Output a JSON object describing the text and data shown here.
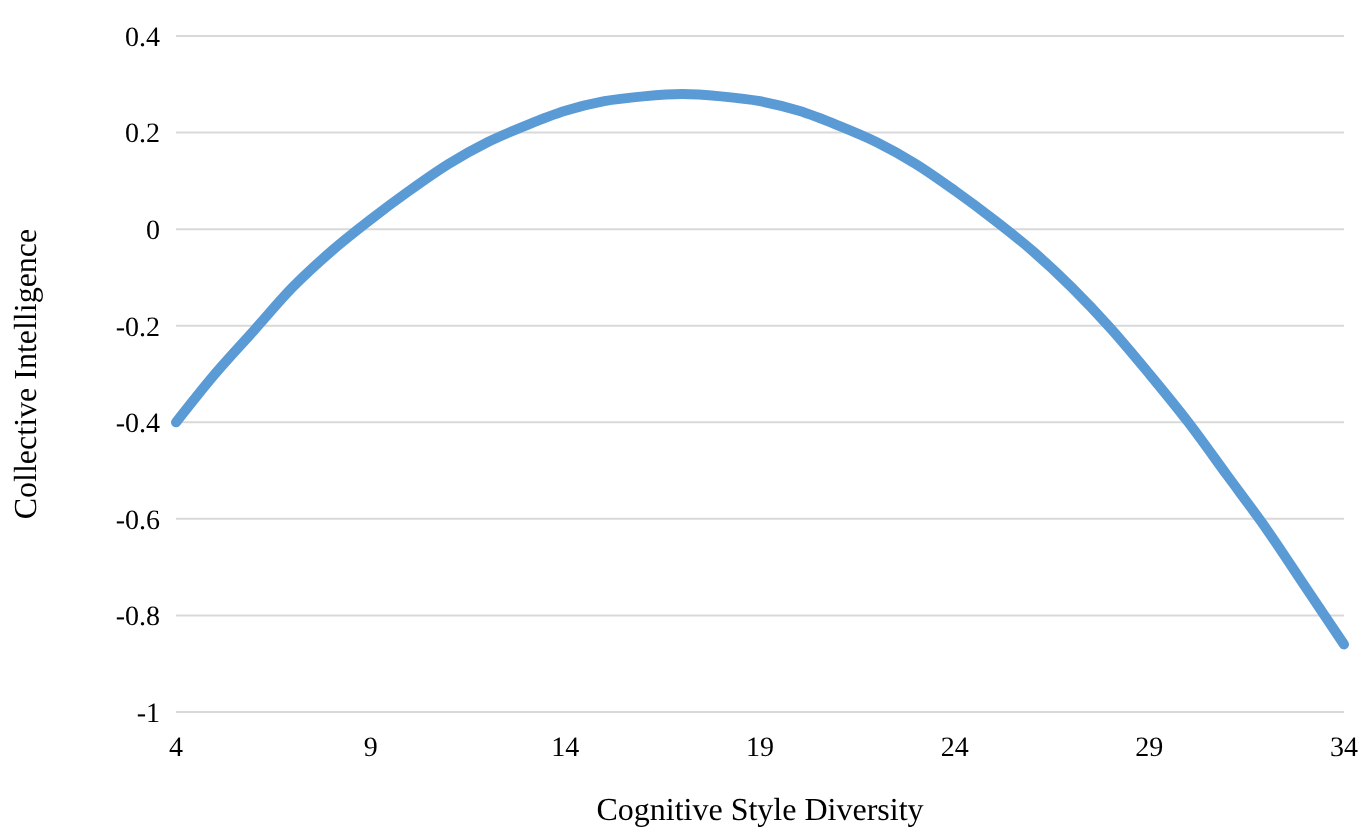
{
  "chart_data": {
    "type": "line",
    "xlabel": "Cognitive Style Diversity",
    "ylabel": "Collective Intelligence",
    "x": [
      4,
      5,
      6,
      7,
      8,
      9,
      10,
      11,
      12,
      13,
      14,
      15,
      16,
      17,
      18,
      19,
      20,
      21,
      22,
      23,
      24,
      25,
      26,
      27,
      28,
      29,
      30,
      31,
      32,
      33,
      34
    ],
    "series": [
      {
        "color": "#5b9bd5",
        "values": [
          -0.4,
          -0.3,
          -0.21,
          -0.12,
          -0.045,
          0.02,
          0.08,
          0.135,
          0.18,
          0.215,
          0.245,
          0.265,
          0.275,
          0.28,
          0.275,
          0.265,
          0.245,
          0.215,
          0.18,
          0.135,
          0.08,
          0.02,
          -0.045,
          -0.12,
          -0.205,
          -0.3,
          -0.4,
          -0.51,
          -0.62,
          -0.74,
          -0.86
        ]
      }
    ],
    "xlim": [
      4,
      34
    ],
    "xticks": [
      4,
      9,
      14,
      19,
      24,
      29,
      34
    ],
    "ylim": [
      -1,
      0.4
    ],
    "yticks": [
      -1,
      -0.8,
      -0.6,
      -0.4,
      -0.2,
      0,
      0.2,
      0.4
    ],
    "grid": "y",
    "marker": "none",
    "line_style": "solid"
  }
}
